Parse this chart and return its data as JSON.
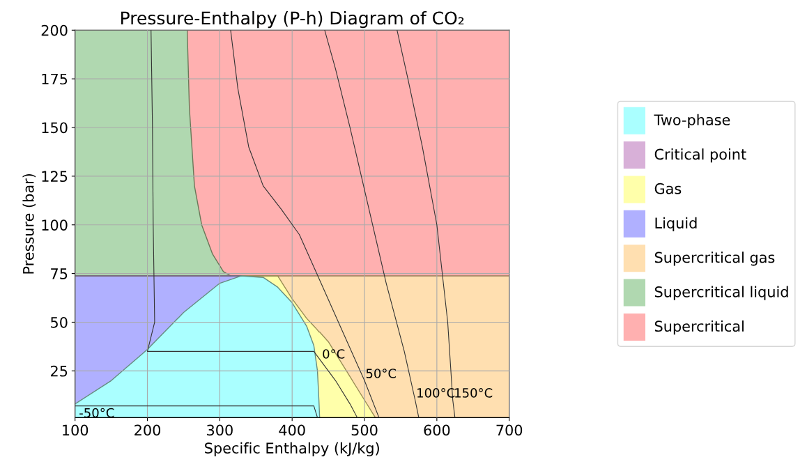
{
  "chart_data": {
    "type": "area",
    "title": "Pressure-Enthalpy (P-h) Diagram of CO₂",
    "xlabel": "Specific Enthalpy (kJ/kg)",
    "ylabel": "Pressure (bar)",
    "xlim": [
      100,
      700
    ],
    "ylim": [
      1,
      200
    ],
    "xticks": [
      100,
      200,
      300,
      400,
      500,
      600,
      700
    ],
    "yticks": [
      25,
      50,
      75,
      100,
      125,
      150,
      175,
      200
    ],
    "grid": true,
    "legend": "right",
    "series": [
      {
        "name": "Supercritical",
        "color": "#ffb0b0",
        "x": [
          255,
          700
        ],
        "values": [
          200,
          200
        ]
      },
      {
        "name": "Supercritical liquid",
        "color": "#b0d8b0",
        "x": [
          100,
          255,
          258,
          265,
          275,
          290,
          305,
          315
        ],
        "values": [
          200,
          200,
          160,
          120,
          100,
          85,
          76,
          73.8
        ]
      },
      {
        "name": "Supercritical gas",
        "color": "#ffdfb0",
        "x": [
          100,
          700
        ],
        "values": [
          73.8,
          73.8
        ]
      },
      {
        "name": "Liquid",
        "color": "#b0b0ff",
        "x": [
          100,
          330
        ],
        "values": [
          73.8,
          73.8
        ]
      },
      {
        "name": "Gas",
        "color": "#ffffaa",
        "x": [
          330,
          360,
          380,
          400,
          420,
          430,
          435,
          437,
          438,
          450,
          480,
          500,
          515
        ],
        "values": [
          73.8,
          73.8,
          73.8,
          62,
          52,
          48,
          46,
          45,
          45,
          40,
          22,
          10,
          1
        ]
      },
      {
        "name": "Critical point",
        "color": "#d8b0d8"
      },
      {
        "name": "Two-phase",
        "color": "#aaffff",
        "x": [
          100,
          150,
          200,
          250,
          300,
          330,
          360,
          380,
          400,
          420,
          430,
          435,
          437,
          438
        ],
        "values": [
          8,
          20,
          36,
          55,
          70,
          73.8,
          73,
          68,
          60,
          48,
          38,
          25,
          10,
          1
        ]
      },
      {
        "type": "line",
        "name": "-50°C",
        "color": "#333333",
        "x": [
          100,
          430,
          435
        ],
        "values": [
          7,
          7,
          1
        ]
      },
      {
        "type": "line",
        "name": "0°C",
        "color": "#333333",
        "x": [
          205,
          207,
          208,
          210,
          200,
          430,
          440,
          460,
          480,
          490
        ],
        "values": [
          200,
          150,
          100,
          50,
          35,
          35,
          30,
          20,
          8,
          1
        ]
      },
      {
        "type": "line",
        "name": "50°C",
        "color": "#333333",
        "x": [
          315,
          325,
          340,
          360,
          385,
          410,
          440,
          470,
          500,
          520
        ],
        "values": [
          200,
          170,
          140,
          120,
          108,
          95,
          70,
          45,
          20,
          1
        ]
      },
      {
        "type": "line",
        "name": "100°C",
        "color": "#333333",
        "x": [
          445,
          460,
          480,
          505,
          530,
          555,
          570,
          575
        ],
        "values": [
          200,
          180,
          150,
          110,
          70,
          35,
          10,
          1
        ]
      },
      {
        "type": "line",
        "name": "150°C",
        "color": "#333333",
        "x": [
          545,
          560,
          580,
          600,
          615,
          622,
          625
        ],
        "values": [
          200,
          175,
          140,
          100,
          50,
          10,
          1
        ]
      }
    ]
  }
}
